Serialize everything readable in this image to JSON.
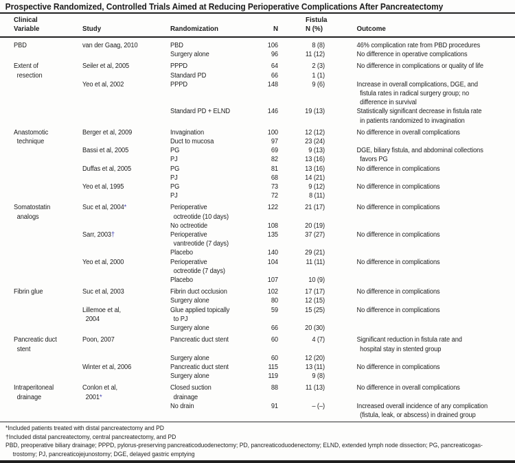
{
  "title": "Prospective Randomized, Controlled Trials Aimed at Reducing Perioperative Complications After Pancreatectomy",
  "header": {
    "clinical_line1": "Clinical",
    "clinical_line2": "Variable",
    "study": "Study",
    "randomization": "Randomization",
    "n": "N",
    "fistula_line1": "Fistula",
    "fistula_line2": "N (%)",
    "outcome": "Outcome"
  },
  "table": {
    "rows": [
      {
        "v": "PBD",
        "s": "van der Gaag, 2010",
        "r": "PBD",
        "n": "106",
        "f": "8 (8)",
        "o": "46% complication rate from PBD procedures"
      },
      {
        "r": "Surgery alone",
        "n": "96",
        "f": "11 (12)",
        "o": "No difference in operative complications"
      },
      {
        "g": true,
        "v": "Extent of",
        "s": "Seiler et al, 2005",
        "r": "PPPD",
        "n": "64",
        "f": "2 (3)",
        "o": "No difference in complications or quality of life"
      },
      {
        "v": "resection",
        "r": "Standard PD",
        "n": "66",
        "f": "1 (1)",
        "ind": [
          "v"
        ]
      },
      {
        "s": "Yeo et al, 2002",
        "r": "PPPD",
        "n": "148",
        "f": "9 (6)",
        "o": "Increase in overall complications, DGE, and"
      },
      {
        "o": "fistula rates in radical surgery group; no",
        "ind": [
          "o"
        ]
      },
      {
        "o": "difference in survival",
        "ind": [
          "o"
        ]
      },
      {
        "r": "Standard PD + ELND",
        "n": "146",
        "f": "19 (13)",
        "o": "Statistically significant decrease in fistula rate"
      },
      {
        "o": "in patients randomized to invagination",
        "ind": [
          "o"
        ]
      },
      {
        "g": true,
        "v": "Anastomotic",
        "s": "Berger et al, 2009",
        "r": "Invagination",
        "n": "100",
        "f": "12 (12)",
        "o": "No difference in overall complications"
      },
      {
        "v": "technique",
        "r": "Duct to mucosa",
        "n": "97",
        "f": "23 (24)",
        "ind": [
          "v"
        ]
      },
      {
        "s": "Bassi et al, 2005",
        "r": "PG",
        "n": "69",
        "f": "9 (13)",
        "o": "DGE, biliary fistula, and abdominal collections"
      },
      {
        "r": "PJ",
        "n": "82",
        "f": "13 (16)",
        "o": "favors PG",
        "ind": [
          "o"
        ]
      },
      {
        "s": "Duffas et al, 2005",
        "r": "PG",
        "n": "81",
        "f": "13 (16)",
        "o": "No difference in complications"
      },
      {
        "r": "PJ",
        "n": "68",
        "f": "14 (21)"
      },
      {
        "s": "Yeo et al, 1995",
        "r": "PG",
        "n": "73",
        "f": "9 (12)",
        "o": "No difference in complications"
      },
      {
        "r": "PJ",
        "n": "72",
        "f": "8 (11)"
      },
      {
        "g": true,
        "v": "Somatostatin",
        "s": "Suc et al, 2004",
        "smark": "*",
        "r": "Perioperative",
        "n": "122",
        "f": "21 (17)",
        "o": "No difference in complications"
      },
      {
        "v": "analogs",
        "r": "octreotide (10 days)",
        "ind": [
          "v",
          "r"
        ]
      },
      {
        "r": "No octreotide",
        "n": "108",
        "f": "20 (19)"
      },
      {
        "s": "Sarr, 2003",
        "smark": "†",
        "r": "Perioperative",
        "n": "135",
        "f": "37 (27)",
        "o": "No difference in complications"
      },
      {
        "r": "vantreotide (7 days)",
        "ind": [
          "r"
        ]
      },
      {
        "r": "Placebo",
        "n": "140",
        "f": "29 (21)"
      },
      {
        "s": "Yeo et al, 2000",
        "r": "Perioperative",
        "n": "104",
        "f": "11 (11)",
        "o": "No difference in complications"
      },
      {
        "r": "octreotide (7 days)",
        "ind": [
          "r"
        ]
      },
      {
        "r": "Placebo",
        "n": "107",
        "f": "10 (9)"
      },
      {
        "g": true,
        "v": "Fibrin glue",
        "s": "Suc et al, 2003",
        "r": "Fibrin duct occlusion",
        "n": "102",
        "f": "17 (17)",
        "o": "No difference in complications"
      },
      {
        "r": "Surgery alone",
        "n": "80",
        "f": "12 (15)"
      },
      {
        "s": "Lillemoe et al,",
        "r": "Glue applied topically",
        "n": "59",
        "f": "15 (25)",
        "o": "No difference in complications"
      },
      {
        "s": "2004",
        "r": "to PJ",
        "ind": [
          "s",
          "r"
        ]
      },
      {
        "r": "Surgery alone",
        "n": "66",
        "f": "20 (30)"
      },
      {
        "g": true,
        "v": "Pancreatic duct",
        "s": "Poon, 2007",
        "r": "Pancreatic duct stent",
        "n": "60",
        "f": "4 (7)",
        "o": "Significant reduction in fistula rate and"
      },
      {
        "v": "stent",
        "o": "hospital stay in stented group",
        "ind": [
          "v",
          "o"
        ]
      },
      {
        "r": "Surgery alone",
        "n": "60",
        "f": "12 (20)"
      },
      {
        "s": "Winter et al, 2006",
        "r": "Pancreatic duct stent",
        "n": "115",
        "f": "13 (11)",
        "o": "No difference in complications"
      },
      {
        "r": "Surgery alone",
        "n": "119",
        "f": "9 (8)"
      },
      {
        "g": true,
        "v": "Intraperitoneal",
        "s": "Conlon et al,",
        "r": "Closed suction",
        "n": "88",
        "f": "11 (13)",
        "o": "No difference in overall complications"
      },
      {
        "v": "drainage",
        "s": "2001",
        "smark": "*",
        "r": "drainage",
        "ind": [
          "v",
          "s",
          "r"
        ]
      },
      {
        "r": "No drain",
        "n": "91",
        "f": "– (–)",
        "o": "Increased overall incidence of any complication"
      },
      {
        "o": "(fistula, leak, or abscess) in drained group",
        "ind": [
          "o"
        ]
      }
    ]
  },
  "footnotes": [
    {
      "text": "*Included patients treated with distal pancreatectomy and PD"
    },
    {
      "text": "†Included distal pancreatectomy, central pancreatectomy, and PD"
    },
    {
      "text": "PBD, preoperative biliary drainage; PPPD, pylorus-preserving pancreaticoduodenectomy; PD, pancreaticoduodenectomy; ELND, extended lymph node dissection; PG, pancreaticogas-"
    },
    {
      "text": "trostomy; PJ, pancreaticojejunostomy; DGE, delayed gastric emptying",
      "ind": true
    }
  ],
  "colors": {
    "background": "#fdfdfc",
    "text": "#1c1c1c",
    "rule_dark": "#1f1f1f",
    "rule_light": "#8f8f8f",
    "marker": "#4343b2"
  }
}
